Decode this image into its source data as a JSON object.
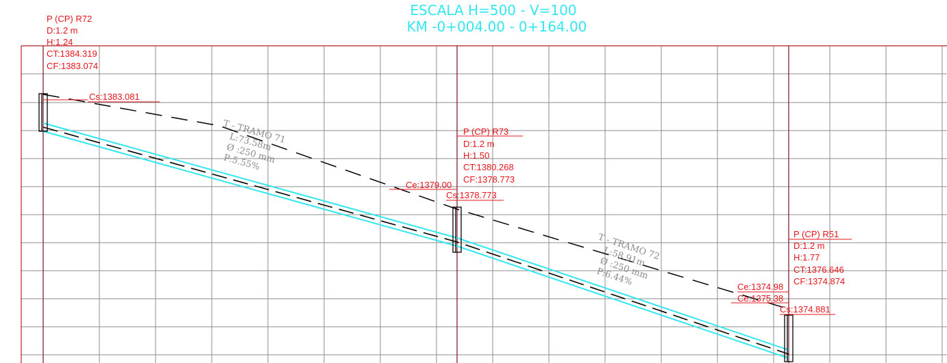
{
  "header": {
    "scale": "ESCALA H=500 - V=100",
    "km": "KM -0+004.00 - 0+164.00"
  },
  "colors": {
    "grid": "#8c8c8c",
    "frame": "#b81d24",
    "label": "#e8141c",
    "pipe": "#33e6f0",
    "terrain": "#000000",
    "tramo_text": "#8a8a8a"
  },
  "manholes": [
    {
      "id": "R72",
      "lines": [
        "P (CP)  R72",
        "D:1.2 m",
        "H:1.24",
        "CT:1384.319",
        "CF:1383.074"
      ],
      "ct": 1384.319,
      "cf": 1383.074,
      "levels": [
        {
          "text": "Cs:1383.081"
        }
      ]
    },
    {
      "id": "R73",
      "lines": [
        "P (CP)  R73",
        "D:1.2 m",
        "H:1.50",
        "CT:1380.268",
        "CF:1378.773"
      ],
      "ct": 1380.268,
      "cf": 1378.773,
      "levels": [
        {
          "text": "Ce:1379.00"
        },
        {
          "text": "Cs:1378.773"
        }
      ]
    },
    {
      "id": "R51",
      "lines": [
        "P (CP)  R51",
        "D:1.2 m",
        "H:1.77",
        "CT:1376.646",
        "CF:1374.874"
      ],
      "ct": 1376.646,
      "cf": 1374.874,
      "levels": [
        {
          "text": "Ce:1374.98"
        },
        {
          "text": "Ce:1375.38"
        },
        {
          "text": "Cs:1374.881"
        }
      ]
    }
  ],
  "tramos": [
    {
      "lines": [
        "T - TRAMO  71",
        "L:73.58m",
        "Ø :250  mm",
        "P:5.55%"
      ]
    },
    {
      "lines": [
        "T - TRAMO  72",
        "L:58.91m",
        "Ø :250  mm",
        "P:6.44%"
      ]
    }
  ]
}
